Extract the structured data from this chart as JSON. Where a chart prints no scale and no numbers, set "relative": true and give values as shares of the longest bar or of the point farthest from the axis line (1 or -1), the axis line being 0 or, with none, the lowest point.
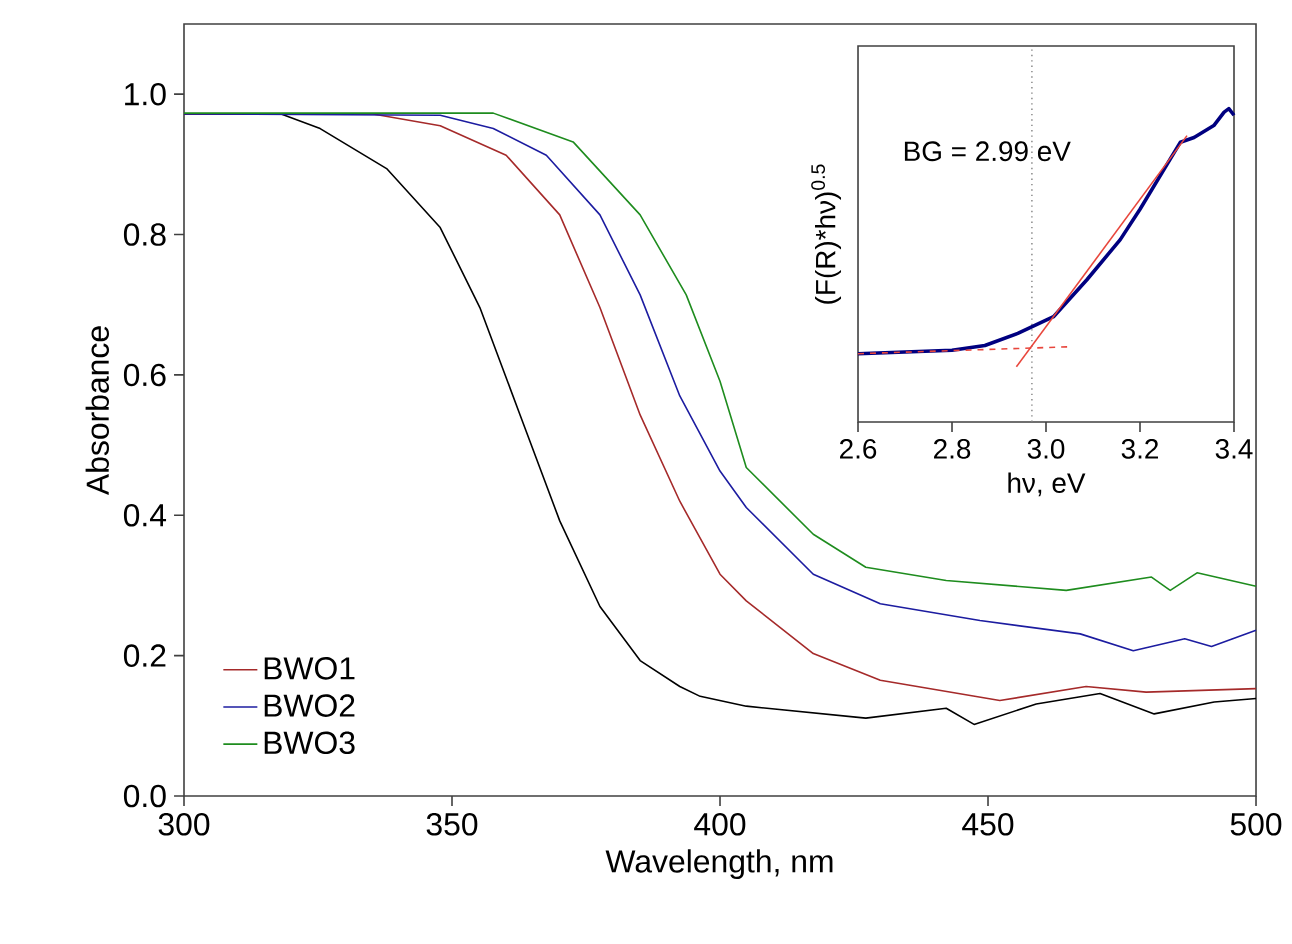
{
  "chart_data": [
    {
      "type": "line",
      "xlabel": "Wavelength, nm",
      "ylabel": "Absorbance",
      "xlim": [
        300,
        500
      ],
      "ylim": [
        0,
        1.1
      ],
      "xticks": [
        300,
        350,
        400,
        450,
        500
      ],
      "yticks": [
        {
          "value": 0,
          "label": "0.0"
        },
        {
          "value": 0.2,
          "label": "0.2"
        },
        {
          "value": 0.4,
          "label": "0.4"
        },
        {
          "value": 0.6,
          "label": "0.6"
        },
        {
          "value": 0.8,
          "label": "0.8"
        },
        {
          "value": 1.0,
          "label": "1.0"
        }
      ],
      "legend": "bottom left",
      "series": [
        {
          "color": "#000000",
          "x": [
            300,
            318,
            325.4,
            337.8,
            347.8,
            355.2,
            362.7,
            370.1,
            377.6,
            385.1,
            392.5,
            396.3,
            404.9,
            427.2,
            442.2,
            447.4,
            459,
            470.9,
            481,
            492.2,
            500
          ],
          "values": [
            0.972,
            0.972,
            0.951,
            0.894,
            0.81,
            0.696,
            0.543,
            0.392,
            0.27,
            0.193,
            0.156,
            0.142,
            0.128,
            0.111,
            0.125,
            0.102,
            0.131,
            0.146,
            0.117,
            0.134,
            0.139
          ]
        },
        {
          "name": "BWO1",
          "color": "#a52a2a",
          "x": [
            300,
            335,
            347.8,
            360.1,
            370.1,
            377.6,
            385.1,
            392.5,
            400,
            404.9,
            417.4,
            429.9,
            452.2,
            468.3,
            479.5,
            500
          ],
          "values": [
            0.972,
            0.972,
            0.955,
            0.913,
            0.828,
            0.696,
            0.543,
            0.42,
            0.316,
            0.278,
            0.203,
            0.165,
            0.136,
            0.156,
            0.148,
            0.153
          ]
        },
        {
          "name": "BWO2",
          "color": "#1c1ca0",
          "x": [
            300,
            347.8,
            357.7,
            367.6,
            377.6,
            385.1,
            392.5,
            400,
            404.9,
            417.4,
            429.9,
            448.5,
            467.2,
            477.1,
            486.7,
            491.7,
            500
          ],
          "values": [
            0.972,
            0.97,
            0.951,
            0.913,
            0.828,
            0.714,
            0.57,
            0.463,
            0.411,
            0.316,
            0.274,
            0.25,
            0.231,
            0.207,
            0.224,
            0.213,
            0.236
          ]
        },
        {
          "name": "BWO3",
          "color": "#1e8c1e",
          "x": [
            300,
            357.7,
            372.6,
            385.1,
            393.7,
            400,
            404.9,
            417.4,
            427.2,
            442.2,
            464.6,
            480.5,
            484,
            489,
            500
          ],
          "values": [
            0.973,
            0.973,
            0.932,
            0.828,
            0.714,
            0.591,
            0.468,
            0.373,
            0.326,
            0.307,
            0.293,
            0.312,
            0.293,
            0.318,
            0.299
          ]
        }
      ]
    },
    {
      "type": "line",
      "relative": true,
      "tick_labels": "x",
      "xlabel": "hν, eV",
      "ylabel": "(F(R)*hν)$^{0.5}$",
      "xlim": [
        2.6,
        3.4
      ],
      "xticks": [
        2.6,
        2.8,
        {
          "value": 3.0,
          "label": "3.0"
        },
        3.2,
        3.4
      ],
      "annotations": [
        "BG = 2.99 eV"
      ],
      "ref_lines": [
        {
          "axis": "x",
          "value": 2.97,
          "color": "#808080",
          "line_style": "dotted"
        }
      ],
      "series": [
        {
          "color": "#000080",
          "x": [
            2.6,
            2.8,
            2.87,
            2.94,
            3.016,
            3.087,
            3.158,
            3.2,
            3.243,
            3.286,
            3.315,
            3.357,
            3.379,
            3.389,
            3.4
          ],
          "values": [
            0.218,
            0.229,
            0.244,
            0.283,
            0.336,
            0.454,
            0.582,
            0.679,
            0.786,
            0.893,
            0.908,
            0.946,
            0.989,
            1.0,
            0.979
          ]
        },
        {
          "color": "#e8463c",
          "x": [
            2.937,
            3.3
          ],
          "values": [
            0.176,
            0.914
          ]
        },
        {
          "color": "#e8463c",
          "line_style": "dashed",
          "x": [
            2.6,
            3.05
          ],
          "values": [
            0.218,
            0.24
          ]
        }
      ]
    }
  ]
}
